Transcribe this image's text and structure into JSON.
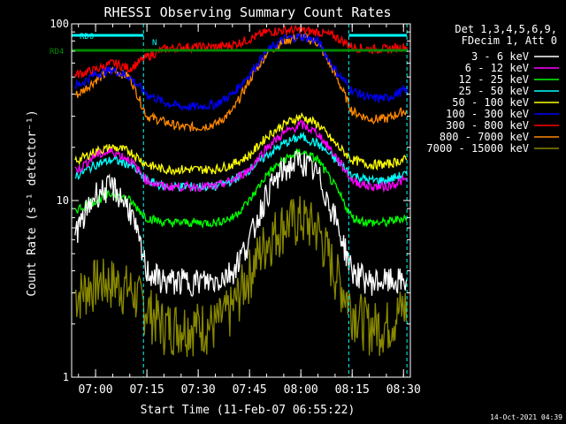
{
  "chart_data": {
    "type": "line",
    "title": "RHESSI Observing Summary Count Rates",
    "xlabel": "Start Time (11-Feb-07 06:55:22)",
    "ylabel": "Count Rate (s⁻¹ detector⁻¹)",
    "y_scale": "log",
    "ylim": [
      1,
      100
    ],
    "y_ticks": [
      "1",
      "10",
      "100"
    ],
    "xlim": [
      "06:53",
      "08:32"
    ],
    "x_ticks": [
      "07:00",
      "07:15",
      "07:30",
      "07:45",
      "08:00",
      "08:15",
      "08:30"
    ],
    "legend_header": [
      "Det 1,3,4,5,6,9,",
      "FDecim 1, Att 0"
    ],
    "legend_position": "right",
    "timestamp": "14-Oct-2021 04:39",
    "flags": [
      {
        "name": "RD0",
        "color": "#00ffff",
        "segments": [
          [
            "06:53",
            "07:14"
          ],
          [
            "08:14",
            "08:31"
          ]
        ]
      },
      {
        "name": "N",
        "color": "#00ffff",
        "segments": [
          [
            "07:16",
            "07:16"
          ]
        ]
      },
      {
        "name": "RD4",
        "color": "#008800",
        "segments": [
          [
            "06:53",
            "08:31"
          ]
        ]
      }
    ],
    "boundaries": [
      "06:53",
      "07:14",
      "08:14",
      "08:31"
    ],
    "times": [
      "06:55",
      "07:00",
      "07:05",
      "07:10",
      "07:15",
      "07:20",
      "07:25",
      "07:30",
      "07:35",
      "07:40",
      "07:45",
      "07:50",
      "07:55",
      "08:00",
      "08:05",
      "08:10",
      "08:15",
      "08:20",
      "08:25",
      "08:30"
    ],
    "series": [
      {
        "name": "3 - 6 keV",
        "color": "#ffffff",
        "values": [
          7,
          11,
          12,
          9,
          4,
          3.5,
          3.5,
          3.5,
          3.5,
          4,
          6,
          11,
          15,
          17,
          14,
          8,
          4,
          3.5,
          3.5,
          3.5
        ]
      },
      {
        "name": "6 - 12 keV",
        "color": "#ff00ff",
        "values": [
          15,
          18,
          19,
          17,
          13,
          12,
          12,
          12,
          12,
          13,
          15,
          20,
          24,
          27,
          24,
          18,
          13,
          12,
          12,
          13
        ]
      },
      {
        "name": "12 - 25 keV",
        "color": "#00ff00",
        "values": [
          9,
          10,
          11,
          10,
          8,
          7.5,
          7.5,
          7.5,
          7.5,
          8,
          10,
          14,
          17,
          19,
          17,
          12,
          8,
          7.5,
          7.5,
          8
        ]
      },
      {
        "name": "25 - 50 keV",
        "color": "#00ffff",
        "values": [
          14,
          16,
          17,
          16,
          13,
          12,
          12,
          12,
          12,
          13,
          15,
          18,
          21,
          23,
          21,
          17,
          14,
          13,
          13,
          14
        ]
      },
      {
        "name": "50 - 100 keV",
        "color": "#ffff00",
        "values": [
          17,
          19,
          20,
          19,
          16,
          15,
          15,
          15,
          15,
          16,
          18,
          23,
          27,
          30,
          27,
          21,
          17,
          16,
          16,
          17
        ]
      },
      {
        "name": "100 - 300 keV",
        "color": "#0000ff",
        "values": [
          45,
          52,
          55,
          50,
          40,
          36,
          34,
          34,
          35,
          40,
          52,
          70,
          82,
          85,
          80,
          55,
          42,
          38,
          38,
          42
        ]
      },
      {
        "name": "300 - 800 keV",
        "color": "#ff0000",
        "values": [
          52,
          55,
          60,
          56,
          65,
          72,
          74,
          74,
          74,
          76,
          82,
          90,
          92,
          92,
          90,
          85,
          74,
          72,
          72,
          74
        ]
      },
      {
        "name": "800 - 7000 keV",
        "color": "#ff8800",
        "values": [
          40,
          48,
          55,
          50,
          30,
          28,
          26,
          26,
          27,
          32,
          48,
          68,
          80,
          85,
          78,
          52,
          32,
          29,
          29,
          32
        ]
      },
      {
        "name": "7000 - 15000 keV",
        "color": "#888800",
        "values": [
          3,
          3.5,
          3.5,
          3.2,
          2.5,
          2,
          2,
          2,
          2,
          2.5,
          4,
          6,
          7.5,
          8,
          7,
          4,
          2.5,
          2,
          2,
          2.5
        ]
      }
    ]
  }
}
